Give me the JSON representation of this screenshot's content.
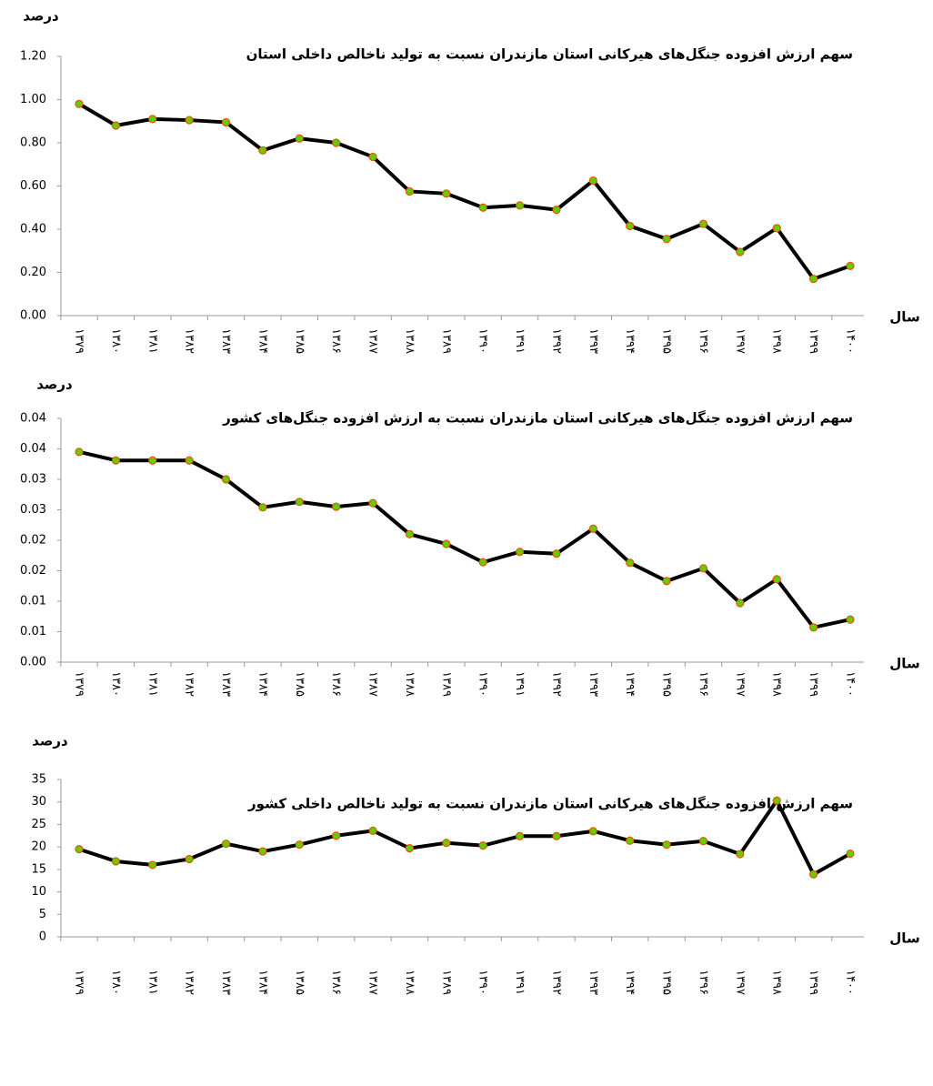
{
  "chart_data": [
    {
      "type": "line",
      "title": "سهم ارزش افزوده جنگل‌های هیرکانی استان مازندران نسبت به تولید ناخالص داخلی استان",
      "y_label": "درصد",
      "x_label": "سال",
      "categories": [
        "۱۳۷۹",
        "۱۳۸۰",
        "۱۳۸۱",
        "۱۳۸۲",
        "۱۳۸۳",
        "۱۳۸۴",
        "۱۳۸۵",
        "۱۳۸۶",
        "۱۳۸۷",
        "۱۳۸۸",
        "۱۳۸۹",
        "۱۳۹۰",
        "۱۳۹۱",
        "۱۳۹۲",
        "۱۳۹۳",
        "۱۳۹۴",
        "۱۳۹۵",
        "۱۳۹۶",
        "۱۳۹۷",
        "۱۳۹۸",
        "۱۳۹۹",
        "۱۴۰۰"
      ],
      "values": [
        0.98,
        0.88,
        0.91,
        0.905,
        0.895,
        0.765,
        0.82,
        0.8,
        0.735,
        0.575,
        0.565,
        0.5,
        0.51,
        0.49,
        0.625,
        0.415,
        0.355,
        0.425,
        0.295,
        0.405,
        0.17,
        0.23
      ],
      "color": "#000000",
      "marker_color": "#66cc00",
      "marker_edge": "#e05a00",
      "ylim": [
        0,
        1.2
      ],
      "yticks": [
        {
          "value": 0,
          "label": "0.00"
        },
        {
          "value": 0.2,
          "label": "0.20"
        },
        {
          "value": 0.4,
          "label": "0.40"
        },
        {
          "value": 0.6,
          "label": "0.60"
        },
        {
          "value": 0.8,
          "label": "0.80"
        },
        {
          "value": 1,
          "label": "1.00"
        },
        {
          "value": 1.2,
          "label": "1.20"
        }
      ]
    },
    {
      "type": "line",
      "title": "سهم ارزش افزوده جنگل‌های هیرکانی استان مازندران نسبت به ارزش افزوده جنگل‌های کشور",
      "y_label": "درصد",
      "x_label": "سال",
      "categories": [
        "۱۳۷۹",
        "۱۳۸۰",
        "۱۳۸۱",
        "۱۳۸۲",
        "۱۳۸۳",
        "۱۳۸۴",
        "۱۳۸۵",
        "۱۳۸۶",
        "۱۳۸۷",
        "۱۳۸۸",
        "۱۳۸۹",
        "۱۳۹۰",
        "۱۳۹۱",
        "۱۳۹۲",
        "۱۳۹۳",
        "۱۳۹۴",
        "۱۳۹۵",
        "۱۳۹۶",
        "۱۳۹۷",
        "۱۳۹۸",
        "۱۳۹۹",
        "۱۴۰۰"
      ],
      "values": [
        0.0345,
        0.0331,
        0.0331,
        0.0331,
        0.03,
        0.0254,
        0.0263,
        0.0255,
        0.0261,
        0.021,
        0.0194,
        0.0164,
        0.0181,
        0.0178,
        0.0219,
        0.0163,
        0.0133,
        0.0154,
        0.0097,
        0.0136,
        0.0057,
        0.007
      ],
      "color": "#000000",
      "marker_color": "#66cc00",
      "marker_edge": "#e05a00",
      "ylim": [
        0,
        0.04
      ],
      "yticks": [
        {
          "value": 0,
          "label": "0.00"
        },
        {
          "value": 0.005,
          "label": "0.01"
        },
        {
          "value": 0.01,
          "label": "0.01"
        },
        {
          "value": 0.015,
          "label": "0.02"
        },
        {
          "value": 0.02,
          "label": "0.02"
        },
        {
          "value": 0.025,
          "label": "0.03"
        },
        {
          "value": 0.03,
          "label": "0.03"
        },
        {
          "value": 0.035,
          "label": "0.04"
        },
        {
          "value": 0.04,
          "label": "0.04"
        }
      ]
    },
    {
      "type": "line",
      "title": "سهم ارزش افزوده جنگل‌های هیرکانی استان مازندران نسبت به تولید ناخالص داخلی کشور",
      "y_label": "درصد",
      "x_label": "سال",
      "categories": [
        "۱۳۷۹",
        "۱۳۸۰",
        "۱۳۸۱",
        "۱۳۸۲",
        "۱۳۸۳",
        "۱۳۸۴",
        "۱۳۸۵",
        "۱۳۸۶",
        "۱۳۸۷",
        "۱۳۸۸",
        "۱۳۸۹",
        "۱۳۹۰",
        "۱۳۹۱",
        "۱۳۹۲",
        "۱۳۹۳",
        "۱۳۹۴",
        "۱۳۹۵",
        "۱۳۹۶",
        "۱۳۹۷",
        "۱۳۹۸",
        "۱۳۹۹",
        "۱۴۰۰"
      ],
      "values": [
        19.5,
        16.8,
        16.0,
        17.3,
        20.7,
        19.0,
        20.5,
        22.5,
        23.6,
        19.7,
        20.9,
        20.3,
        22.4,
        22.4,
        23.5,
        21.4,
        20.5,
        21.3,
        18.4,
        30.3,
        13.9,
        18.5
      ],
      "color": "#000000",
      "marker_color": "#66cc00",
      "marker_edge": "#e05a00",
      "ylim": [
        0,
        35
      ],
      "yticks": [
        0,
        5,
        10,
        15,
        20,
        25,
        30,
        35
      ]
    }
  ]
}
